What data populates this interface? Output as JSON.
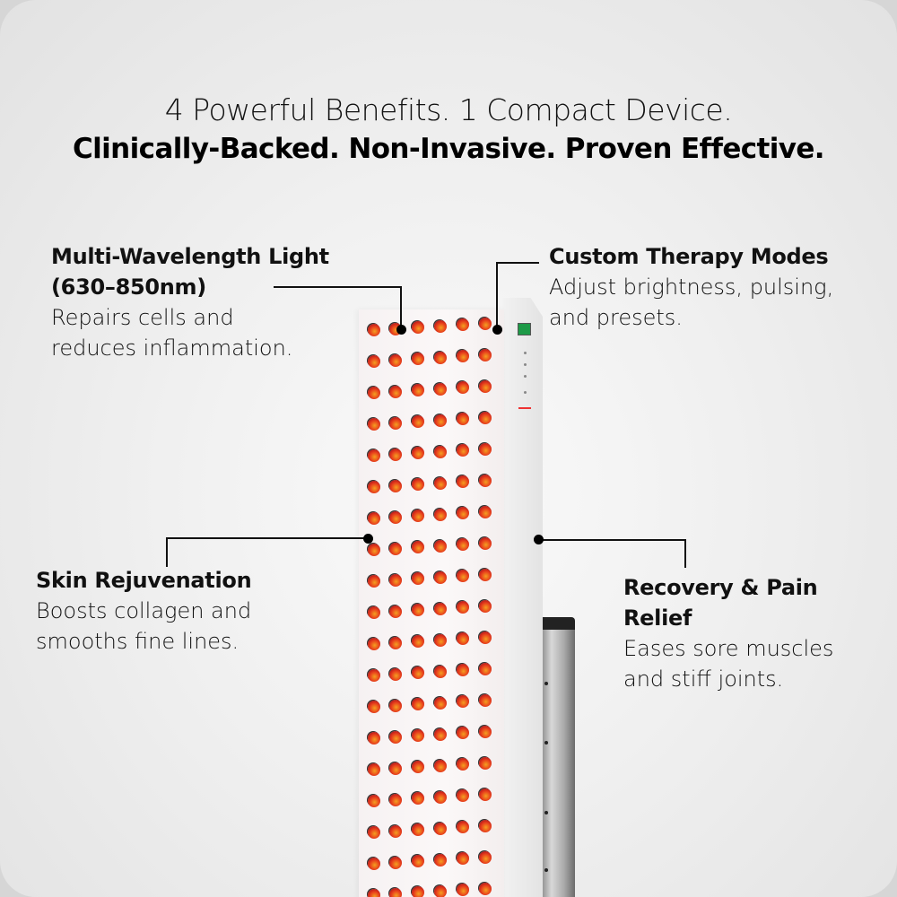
{
  "headline": {
    "line1": "4 Powerful Benefits. 1 Compact Device.",
    "line2": "Clinically-Backed. Non-Invasive. Proven Effective."
  },
  "features": [
    {
      "title": "Multi-Wavelength Light (630–850nm)",
      "description": "Repairs cells and reduces inflammation."
    },
    {
      "title": "Custom Therapy Modes",
      "description": "Adjust brightness, pulsing, and presets."
    },
    {
      "title": "Skin Rejuvenation",
      "description": "Boosts collagen and smooths fine lines."
    },
    {
      "title": "Recovery & Pain Relief",
      "description": "Eases sore muscles and stiff joints."
    }
  ],
  "colors": {
    "led": "#e8401c",
    "display": "#1d9a47",
    "text": "#111111"
  }
}
